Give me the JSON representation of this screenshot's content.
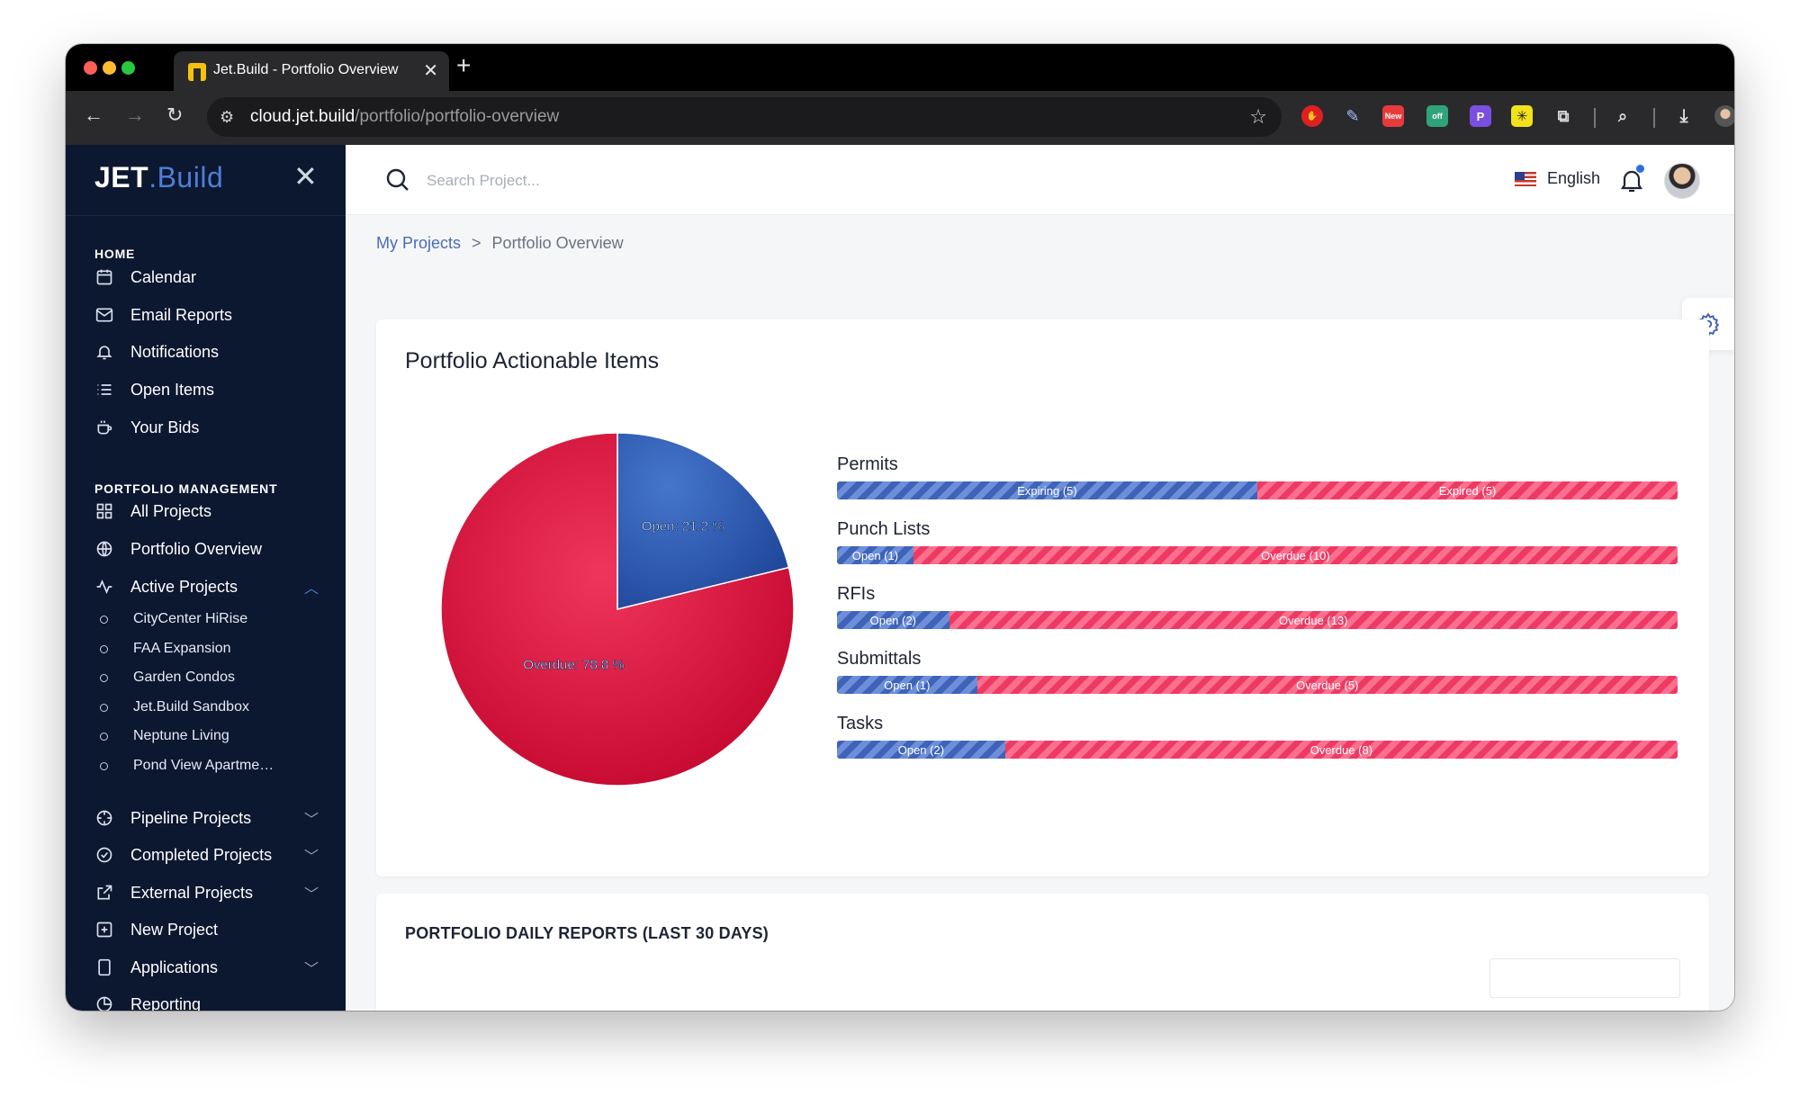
{
  "browser": {
    "tab_title": "Jet.Build - Portfolio Overview",
    "tab_close": "✕",
    "new_tab": "+",
    "url_host": "cloud.jet.build",
    "url_path": "/portfolio/portfolio-overview",
    "extensions": [
      {
        "name": "ublock-icon",
        "color": "#e02020",
        "label": "✋"
      },
      {
        "name": "eyedropper-icon",
        "color": "#2a2a2d",
        "label": ""
      },
      {
        "name": "new-extension-icon",
        "color": "#e83a3a",
        "label": "New"
      },
      {
        "name": "off-extension-icon",
        "color": "#2fa37a",
        "label": "off"
      },
      {
        "name": "p-extension-icon",
        "color": "#7b4fe0",
        "label": "P"
      },
      {
        "name": "yellow-extension-icon",
        "color": "#f1e21b",
        "label": "✳"
      }
    ]
  },
  "sidebar": {
    "brand_1": "JET",
    "brand_2": ".Build",
    "close": "✕",
    "home_title": "HOME",
    "home_items": [
      {
        "label": "Calendar",
        "icon": "calendar-icon"
      },
      {
        "label": "Email Reports",
        "icon": "mail-icon"
      },
      {
        "label": "Notifications",
        "icon": "bell-icon"
      },
      {
        "label": "Open Items",
        "icon": "list-icon"
      },
      {
        "label": "Your Bids",
        "icon": "cup-icon"
      }
    ],
    "pm_title": "PORTFOLIO MANAGEMENT",
    "pm_items": [
      {
        "label": "All Projects",
        "icon": "grid-icon"
      },
      {
        "label": "Portfolio Overview",
        "icon": "globe-icon"
      },
      {
        "label": "Active Projects",
        "icon": "activity-icon"
      }
    ],
    "active_projects": [
      "CityCenter HiRise",
      "FAA Expansion",
      "Garden Condos",
      "Jet.Build Sandbox",
      "Neptune Living",
      "Pond View Apartme…"
    ],
    "more_items": [
      {
        "label": "Pipeline Projects",
        "icon": "crosshair-icon"
      },
      {
        "label": "Completed Projects",
        "icon": "check-circle-icon"
      },
      {
        "label": "External Projects",
        "icon": "external-link-icon"
      },
      {
        "label": "New Project",
        "icon": "plus-square-icon"
      },
      {
        "label": "Applications",
        "icon": "tablet-icon"
      },
      {
        "label": "Reporting",
        "icon": "pie-icon"
      }
    ]
  },
  "topbar": {
    "search_placeholder": "Search Project...",
    "language": "English"
  },
  "breadcrumb": {
    "link": "My Projects",
    "separator": ">",
    "current": "Portfolio Overview"
  },
  "actionable": {
    "title": "Portfolio Actionable Items"
  },
  "chart_data": [
    {
      "type": "pie",
      "series": [
        {
          "label": "Open: 21.2 %",
          "value": 21.2,
          "color": "#2d5bb0"
        },
        {
          "label": "Overdue: 78.8 %",
          "value": 78.8,
          "color": "#d6173d"
        }
      ]
    },
    {
      "type": "bar",
      "categories": [
        "Permits",
        "Punch Lists",
        "RFIs",
        "Submittals",
        "Tasks"
      ],
      "series": [
        {
          "labels": [
            "Expiring (5)",
            "Open (1)",
            "Open (2)",
            "Open (1)",
            "Open (2)"
          ],
          "values": [
            5,
            1,
            2,
            1,
            2
          ]
        },
        {
          "labels": [
            "Expired (5)",
            "Overdue (10)",
            "Overdue (13)",
            "Overdue (5)",
            "Overdue (8)"
          ],
          "values": [
            5,
            10,
            13,
            5,
            8
          ]
        }
      ]
    }
  ],
  "daily_reports": {
    "title": "PORTFOLIO DAILY REPORTS (LAST 30 DAYS)"
  }
}
